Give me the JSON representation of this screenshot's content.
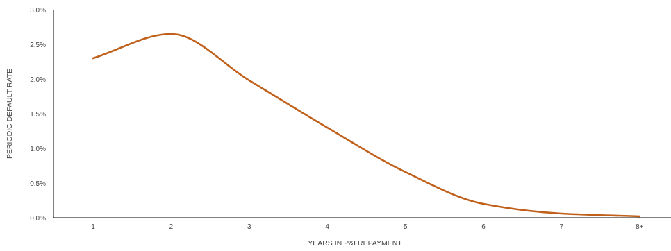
{
  "chart_data": {
    "type": "line",
    "title": "",
    "xlabel": "YEARS IN  P&I REPAYMENT",
    "ylabel": "PERIODIC DEFAULT RATE",
    "categories": [
      "1",
      "2",
      "3",
      "4",
      "5",
      "6",
      "7",
      "8+"
    ],
    "ylim": [
      0,
      3.0
    ],
    "y_ticks": [
      "0.0%",
      "0.5%",
      "1.0%",
      "1.5%",
      "2.0%",
      "2.5%",
      "3.0%"
    ],
    "grid": false,
    "legend": "none",
    "series": [
      {
        "values": [
          2.3,
          2.65,
          1.98,
          1.3,
          0.66,
          0.2,
          0.06,
          0.02
        ],
        "color": "#C0601A"
      }
    ]
  }
}
